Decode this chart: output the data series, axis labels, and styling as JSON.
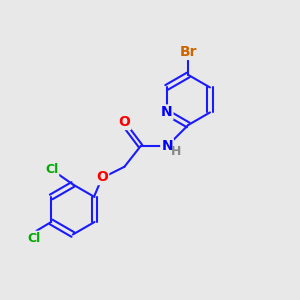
{
  "bg_color": "#e8e8e8",
  "bond_color": "#1a1aff",
  "bond_width": 1.5,
  "atom_colors": {
    "N": "#0000ff",
    "O": "#ff0000",
    "Cl": "#00aa00",
    "Br": "#cc6600",
    "C": "#1a1aff",
    "H": "#888888"
  },
  "font_size": 9
}
